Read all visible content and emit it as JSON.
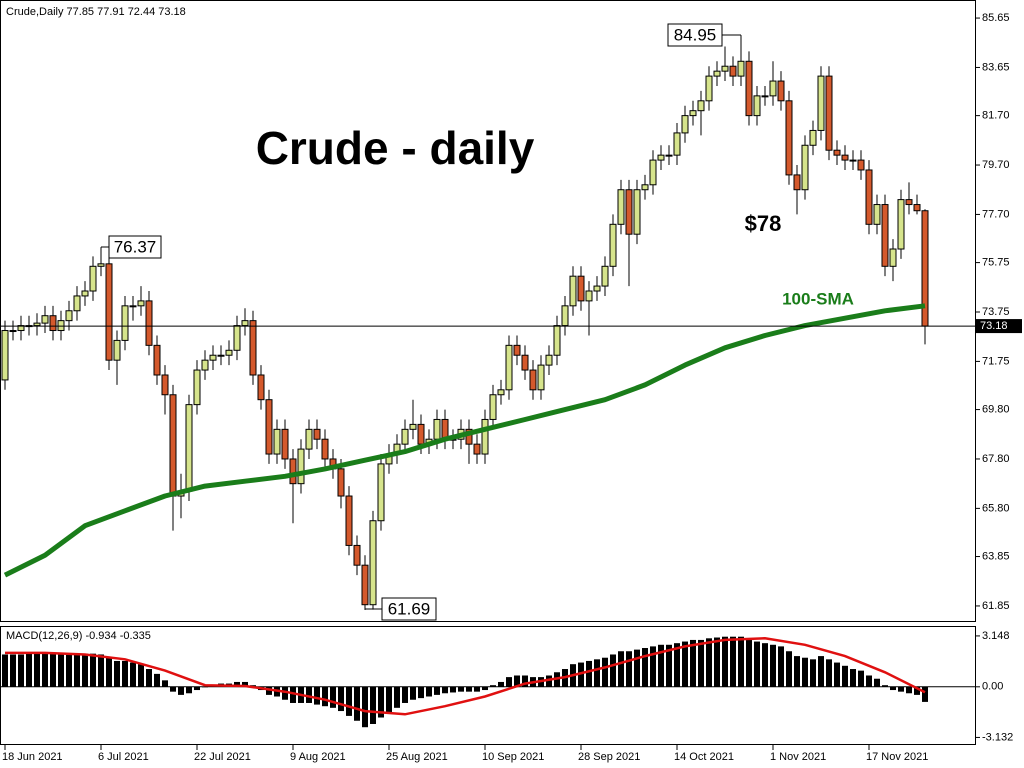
{
  "chart_data": {
    "type": "candlestick",
    "header": "Crude,Daily  77.85 77.91 72.44 73.18",
    "title": "Crude - daily",
    "annotations": [
      "$78",
      "100-SMA"
    ],
    "up_color": "#d6e48c",
    "down_color": "#d4592c",
    "ylim": [
      61.2,
      86.3
    ],
    "yticks": [
      85.65,
      83.65,
      {
        "value": 81.7,
        "label": "81.70"
      },
      {
        "value": 79.7,
        "label": "79.70"
      },
      {
        "value": 77.7,
        "label": "77.70"
      },
      75.75,
      73.75,
      71.75,
      {
        "value": 69.8,
        "label": "69.80"
      },
      {
        "value": 67.8,
        "label": "67.80"
      },
      {
        "value": 65.8,
        "label": "65.80"
      },
      63.85,
      61.85
    ],
    "xticks": [
      {
        "value": 0,
        "label": "18 Jun 2021"
      },
      {
        "value": 12,
        "label": "6 Jul 2021"
      },
      {
        "value": 24,
        "label": "22 Jul 2021"
      },
      {
        "value": 36,
        "label": "9 Aug 2021"
      },
      {
        "value": 48,
        "label": "25 Aug 2021"
      },
      {
        "value": 60,
        "label": "10 Sep 2021"
      },
      {
        "value": 72,
        "label": "28 Sep 2021"
      },
      {
        "value": 84,
        "label": "14 Oct 2021"
      },
      {
        "value": 96,
        "label": "1 Nov 2021"
      },
      {
        "value": 108,
        "label": "17 Nov 2021"
      }
    ],
    "open": [
      71.0,
      73.0,
      73.0,
      73.2,
      73.2,
      73.3,
      73.6,
      73.0,
      73.4,
      73.8,
      74.4,
      74.6,
      75.6,
      75.7,
      71.8,
      72.6,
      74.0,
      74.0,
      74.2,
      72.4,
      71.2,
      70.4,
      66.3,
      66.5,
      70.0,
      71.4,
      71.8,
      72.0,
      72.0,
      72.2,
      73.2,
      73.4,
      71.2,
      70.2,
      68.0,
      69.0,
      67.8,
      66.8,
      68.2,
      69.0,
      68.6,
      67.8,
      67.4,
      66.3,
      64.3,
      63.5,
      61.9,
      65.3,
      67.6,
      68.0,
      68.4,
      69.0,
      69.2,
      68.4,
      68.6,
      69.4,
      68.6,
      68.6,
      69.0,
      68.4,
      68.0,
      69.4,
      70.4,
      70.6,
      72.4,
      72.0,
      71.4,
      70.6,
      71.6,
      72.0,
      73.2,
      74.0,
      75.2,
      74.2,
      74.6,
      74.8,
      75.6,
      77.3,
      78.7,
      76.9,
      78.7,
      78.9,
      79.9,
      80.1,
      80.1,
      81.0,
      81.7,
      81.9,
      82.3,
      83.3,
      83.5,
      83.7,
      83.3,
      83.9,
      81.7,
      82.5,
      82.5,
      83.1,
      82.3,
      79.3,
      78.7,
      80.5,
      81.1,
      83.3,
      80.3,
      80.1,
      79.9,
      79.9,
      79.5,
      77.3,
      78.1,
      75.6,
      76.3,
      78.3,
      78.1,
      77.85
    ],
    "high": [
      73.4,
      73.4,
      73.6,
      73.6,
      73.7,
      74.0,
      74.0,
      73.8,
      74.2,
      74.8,
      75.0,
      76.0,
      76.37,
      76.1,
      73.0,
      74.4,
      74.4,
      74.8,
      74.6,
      72.8,
      71.6,
      70.8,
      67.2,
      70.4,
      71.8,
      72.2,
      72.4,
      72.4,
      72.6,
      73.6,
      73.9,
      73.8,
      71.6,
      70.6,
      69.4,
      69.4,
      68.2,
      68.6,
      69.4,
      69.4,
      69.0,
      68.2,
      67.8,
      66.7,
      64.7,
      63.9,
      65.7,
      68.0,
      68.4,
      68.8,
      69.4,
      70.2,
      69.6,
      69.0,
      69.8,
      69.8,
      69.0,
      69.4,
      69.4,
      68.8,
      69.8,
      70.8,
      71.0,
      72.8,
      72.8,
      72.4,
      71.8,
      72.0,
      72.4,
      73.6,
      74.4,
      75.6,
      75.6,
      75.0,
      75.2,
      76.0,
      77.7,
      79.1,
      79.1,
      79.1,
      79.3,
      80.3,
      80.5,
      80.5,
      81.4,
      82.1,
      82.3,
      82.7,
      83.7,
      83.9,
      84.5,
      84.1,
      84.95,
      84.3,
      82.9,
      82.9,
      83.9,
      83.5,
      82.7,
      79.7,
      80.9,
      81.5,
      83.7,
      83.7,
      80.7,
      80.5,
      80.3,
      80.3,
      79.9,
      78.5,
      78.5,
      76.7,
      78.7,
      79.0,
      78.5,
      77.91
    ],
    "low": [
      70.6,
      72.6,
      72.6,
      72.8,
      72.8,
      72.9,
      72.6,
      72.6,
      73.0,
      73.4,
      74.0,
      74.2,
      75.2,
      71.4,
      70.8,
      72.2,
      73.4,
      73.6,
      72.0,
      70.8,
      69.6,
      64.9,
      65.4,
      66.1,
      69.6,
      71.0,
      71.4,
      71.6,
      71.6,
      71.8,
      72.8,
      70.8,
      69.8,
      67.6,
      67.6,
      67.4,
      65.2,
      66.4,
      67.8,
      68.2,
      67.4,
      67.0,
      65.8,
      63.9,
      63.1,
      61.69,
      61.7,
      64.9,
      67.2,
      67.6,
      68.0,
      68.6,
      68.0,
      68.0,
      68.2,
      68.2,
      68.2,
      68.2,
      67.6,
      67.6,
      67.6,
      69.0,
      70.0,
      70.2,
      71.6,
      71.0,
      70.2,
      70.2,
      71.2,
      71.6,
      72.8,
      73.6,
      73.8,
      72.8,
      74.2,
      74.4,
      75.2,
      76.9,
      74.8,
      76.5,
      78.3,
      78.5,
      79.5,
      79.7,
      79.7,
      80.6,
      81.3,
      80.9,
      81.9,
      82.9,
      83.1,
      82.9,
      82.9,
      81.3,
      81.3,
      82.1,
      82.1,
      81.9,
      78.9,
      77.7,
      78.3,
      80.1,
      80.7,
      79.9,
      79.7,
      79.5,
      79.5,
      79.1,
      76.9,
      76.9,
      75.2,
      75.0,
      75.9,
      77.7,
      77.7,
      72.44
    ],
    "close": [
      73.0,
      73.0,
      73.2,
      73.2,
      73.3,
      73.6,
      73.0,
      73.4,
      73.8,
      74.4,
      74.6,
      75.6,
      75.7,
      71.8,
      72.6,
      74.0,
      74.0,
      74.2,
      72.4,
      71.2,
      70.4,
      66.3,
      66.5,
      70.0,
      71.4,
      71.8,
      72.0,
      72.0,
      72.2,
      73.2,
      73.4,
      71.2,
      70.2,
      68.0,
      69.0,
      67.8,
      66.8,
      68.2,
      69.0,
      68.6,
      67.8,
      67.4,
      66.3,
      64.3,
      63.5,
      61.9,
      65.3,
      67.6,
      68.0,
      68.4,
      69.0,
      69.2,
      68.4,
      68.6,
      69.4,
      68.6,
      68.6,
      69.0,
      68.4,
      68.0,
      69.4,
      70.4,
      70.6,
      72.4,
      72.0,
      71.4,
      70.6,
      71.6,
      72.0,
      73.2,
      74.0,
      75.2,
      74.2,
      74.6,
      74.8,
      75.6,
      77.3,
      78.7,
      76.9,
      78.7,
      78.9,
      79.9,
      80.1,
      80.1,
      81.0,
      81.7,
      81.9,
      82.3,
      83.3,
      83.5,
      83.7,
      83.3,
      83.9,
      81.7,
      82.5,
      82.5,
      83.1,
      82.3,
      79.3,
      78.7,
      80.5,
      81.1,
      83.3,
      80.3,
      80.1,
      79.9,
      79.9,
      79.5,
      77.3,
      78.1,
      75.6,
      76.3,
      78.3,
      78.1,
      77.85,
      73.18
    ],
    "sma": {
      "color": "#1a7d1a",
      "x": [
        0,
        5,
        10,
        15,
        20,
        25,
        30,
        35,
        40,
        45,
        50,
        55,
        60,
        65,
        70,
        75,
        80,
        85,
        90,
        95,
        100,
        105,
        110,
        115
      ],
      "values": [
        63.1,
        63.9,
        65.1,
        65.7,
        66.3,
        66.7,
        66.9,
        67.1,
        67.4,
        67.75,
        68.1,
        68.6,
        69.0,
        69.4,
        69.8,
        70.2,
        70.8,
        71.6,
        72.3,
        72.8,
        73.2,
        73.5,
        73.8,
        74.0
      ]
    },
    "macd": {
      "label": "MACD(12,26,9) -0.934 -0.335",
      "ylim": [
        -3.6,
        3.7
      ],
      "yticks": [
        3.148,
        {
          "value": 0,
          "label": "0.00"
        },
        -3.132
      ],
      "histogram_color": "#000000",
      "histogram": [
        2.0,
        2.0,
        2.0,
        2.05,
        2.05,
        2.1,
        2.1,
        2.05,
        2.05,
        2.05,
        2.05,
        2.05,
        2.0,
        1.8,
        1.6,
        1.6,
        1.5,
        1.4,
        1.1,
        0.8,
        0.4,
        -0.3,
        -0.5,
        -0.4,
        -0.2,
        0.0,
        0.1,
        0.2,
        0.2,
        0.3,
        0.3,
        0.1,
        -0.2,
        -0.5,
        -0.6,
        -0.8,
        -1.0,
        -1.0,
        -1.0,
        -1.1,
        -1.2,
        -1.3,
        -1.5,
        -1.8,
        -2.1,
        -2.5,
        -2.3,
        -1.9,
        -1.6,
        -1.3,
        -1.0,
        -0.8,
        -0.7,
        -0.6,
        -0.5,
        -0.4,
        -0.35,
        -0.3,
        -0.3,
        -0.3,
        -0.2,
        0.1,
        0.3,
        0.6,
        0.7,
        0.7,
        0.6,
        0.6,
        0.7,
        0.9,
        1.1,
        1.4,
        1.5,
        1.6,
        1.7,
        1.8,
        2.0,
        2.2,
        2.2,
        2.3,
        2.4,
        2.5,
        2.6,
        2.6,
        2.7,
        2.8,
        2.9,
        2.9,
        3.0,
        3.05,
        3.1,
        3.1,
        3.1,
        2.9,
        2.8,
        2.7,
        2.6,
        2.5,
        2.2,
        1.9,
        1.8,
        1.7,
        1.9,
        1.7,
        1.5,
        1.3,
        1.1,
        1.0,
        0.7,
        0.5,
        0.1,
        -0.2,
        -0.3,
        -0.4,
        -0.5,
        -0.934
      ],
      "signal": {
        "color": "#e01010",
        "x": [
          0,
          5,
          10,
          15,
          20,
          25,
          30,
          35,
          40,
          45,
          50,
          55,
          60,
          65,
          70,
          75,
          80,
          85,
          90,
          95,
          100,
          105,
          110,
          115
        ],
        "values": [
          2.1,
          2.1,
          2.0,
          1.7,
          1.0,
          0.1,
          0.05,
          -0.3,
          -0.8,
          -1.5,
          -1.7,
          -1.2,
          -0.6,
          0.2,
          0.6,
          1.2,
          1.9,
          2.5,
          2.9,
          3.0,
          2.6,
          1.9,
          0.9,
          -0.335
        ]
      }
    }
  }
}
